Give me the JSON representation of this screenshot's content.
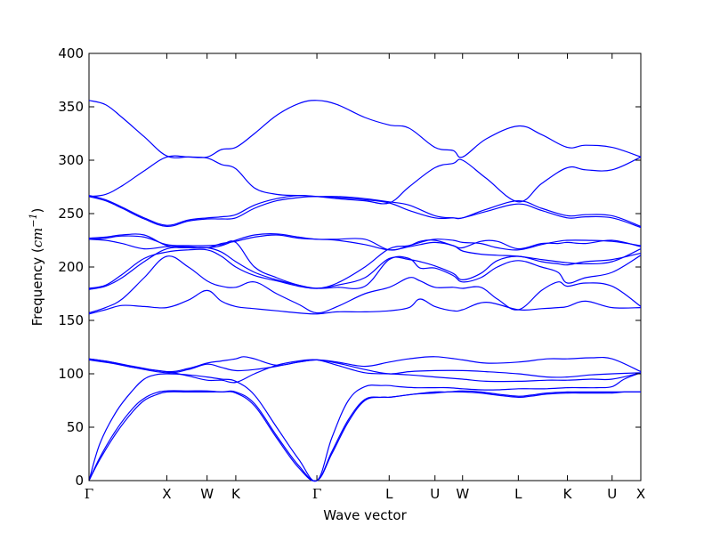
{
  "chart_data": {
    "type": "line",
    "title": "",
    "xlabel": "Wave vector",
    "ylabel": {
      "prefix": "Frequency (",
      "unit_base": "cm",
      "unit_exp": "−1",
      "suffix": ")"
    },
    "ylim": [
      0,
      400
    ],
    "yticks": [
      0,
      50,
      100,
      150,
      200,
      250,
      300,
      350,
      400
    ],
    "xlim": [
      0,
      1
    ],
    "high_symmetry_points": [
      {
        "label": "Γ",
        "x": 0.0
      },
      {
        "label": "X",
        "x": 0.141
      },
      {
        "label": "W",
        "x": 0.214
      },
      {
        "label": "K",
        "x": 0.266
      },
      {
        "label": "Γ",
        "x": 0.413
      },
      {
        "label": "L",
        "x": 0.544
      },
      {
        "label": "U",
        "x": 0.627
      },
      {
        "label": "W",
        "x": 0.677
      },
      {
        "label": "L",
        "x": 0.778
      },
      {
        "label": "K",
        "x": 0.867
      },
      {
        "label": "U",
        "x": 0.948
      },
      {
        "label": "X",
        "x": 1.0
      }
    ],
    "series_color": "#0000ff",
    "series": [
      {
        "x": [
          0,
          0.02,
          0.05,
          0.08,
          0.1,
          0.12,
          0.141,
          0.18,
          0.214,
          0.24,
          0.266,
          0.3,
          0.34,
          0.38,
          0.413,
          0.44,
          0.47,
          0.5,
          0.53,
          0.544,
          0.56,
          0.59,
          0.627,
          0.65,
          0.677,
          0.71,
          0.74,
          0.778,
          0.8,
          0.83,
          0.867,
          0.89,
          0.92,
          0.948,
          0.97,
          1.0
        ],
        "y": [
          0,
          20,
          45,
          65,
          75,
          80,
          83,
          83,
          83,
          83,
          82,
          70,
          40,
          12,
          0,
          25,
          55,
          75,
          78,
          78,
          79,
          81,
          82,
          83,
          83,
          82,
          80,
          78,
          79,
          81,
          82,
          82,
          82,
          82,
          83,
          83
        ]
      },
      {
        "x": [
          0,
          0.02,
          0.05,
          0.08,
          0.1,
          0.12,
          0.141,
          0.18,
          0.214,
          0.24,
          0.266,
          0.3,
          0.34,
          0.38,
          0.413,
          0.44,
          0.47,
          0.5,
          0.53,
          0.544,
          0.56,
          0.59,
          0.627,
          0.65,
          0.677,
          0.71,
          0.74,
          0.778,
          0.8,
          0.83,
          0.867,
          0.89,
          0.92,
          0.948,
          0.97,
          1.0
        ],
        "y": [
          0,
          22,
          48,
          68,
          77,
          82,
          84,
          84,
          84,
          83,
          83,
          72,
          42,
          14,
          0,
          27,
          57,
          76,
          78,
          78,
          79,
          81,
          83,
          83,
          84,
          83,
          81,
          79,
          80,
          82,
          83,
          83,
          83,
          83,
          83,
          83
        ]
      },
      {
        "x": [
          0,
          0.02,
          0.05,
          0.08,
          0.1,
          0.12,
          0.141,
          0.18,
          0.214,
          0.24,
          0.266,
          0.3,
          0.34,
          0.38,
          0.413,
          0.44,
          0.47,
          0.5,
          0.53,
          0.544,
          0.56,
          0.59,
          0.627,
          0.65,
          0.677,
          0.71,
          0.74,
          0.778,
          0.8,
          0.83,
          0.867,
          0.89,
          0.92,
          0.948,
          0.97,
          1.0
        ],
        "y": [
          0,
          35,
          65,
          85,
          95,
          99,
          100,
          99,
          97,
          95,
          93,
          80,
          50,
          20,
          0,
          40,
          75,
          88,
          89,
          89,
          88,
          87,
          87,
          87,
          86,
          85,
          85,
          86,
          86,
          86,
          87,
          87,
          87,
          88,
          95,
          101
        ]
      },
      {
        "x": [
          0,
          0.04,
          0.08,
          0.141,
          0.18,
          0.214,
          0.24,
          0.266,
          0.3,
          0.34,
          0.38,
          0.413,
          0.45,
          0.5,
          0.544,
          0.58,
          0.627,
          0.677,
          0.72,
          0.778,
          0.83,
          0.867,
          0.91,
          0.948,
          1.0
        ],
        "y": [
          114,
          111,
          106,
          102,
          98,
          94,
          94,
          92,
          100,
          108,
          112,
          113,
          108,
          101,
          100,
          99,
          97,
          95,
          93,
          93,
          94,
          94,
          95,
          95,
          101
        ]
      },
      {
        "x": [
          0,
          0.04,
          0.08,
          0.141,
          0.18,
          0.214,
          0.24,
          0.266,
          0.3,
          0.34,
          0.38,
          0.413,
          0.45,
          0.5,
          0.544,
          0.58,
          0.627,
          0.677,
          0.72,
          0.778,
          0.83,
          0.867,
          0.91,
          0.948,
          1.0
        ],
        "y": [
          113,
          110,
          106,
          101,
          104,
          109,
          106,
          103,
          104,
          107,
          111,
          113,
          110,
          104,
          100,
          102,
          103,
          103,
          102,
          100,
          97,
          97,
          99,
          100,
          101
        ]
      },
      {
        "x": [
          0,
          0.04,
          0.08,
          0.141,
          0.18,
          0.214,
          0.24,
          0.266,
          0.28,
          0.3,
          0.34,
          0.38,
          0.413,
          0.45,
          0.5,
          0.544,
          0.58,
          0.627,
          0.677,
          0.72,
          0.778,
          0.83,
          0.867,
          0.91,
          0.948,
          1.0
        ],
        "y": [
          114,
          111,
          107,
          102,
          105,
          110,
          112,
          114,
          116,
          114,
          108,
          111,
          113,
          111,
          107,
          111,
          114,
          116,
          113,
          110,
          111,
          114,
          114,
          115,
          114,
          102
        ]
      },
      {
        "x": [
          0,
          0.03,
          0.06,
          0.1,
          0.141,
          0.18,
          0.214,
          0.24,
          0.266,
          0.3,
          0.34,
          0.38,
          0.413,
          0.45,
          0.5,
          0.544,
          0.58,
          0.6,
          0.627,
          0.66,
          0.677,
          0.72,
          0.778,
          0.82,
          0.85,
          0.867,
          0.9,
          0.948,
          1.0
        ],
        "y": [
          156,
          160,
          164,
          163,
          162,
          169,
          178,
          168,
          163,
          161,
          159,
          157,
          156,
          158,
          158,
          159,
          162,
          170,
          163,
          159,
          160,
          167,
          160,
          161,
          162,
          163,
          168,
          162,
          162
        ]
      },
      {
        "x": [
          0,
          0.03,
          0.06,
          0.1,
          0.141,
          0.18,
          0.214,
          0.24,
          0.266,
          0.3,
          0.34,
          0.38,
          0.413,
          0.45,
          0.5,
          0.544,
          0.58,
          0.6,
          0.627,
          0.66,
          0.677,
          0.71,
          0.74,
          0.778,
          0.82,
          0.85,
          0.867,
          0.9,
          0.948,
          1.0
        ],
        "y": [
          157,
          162,
          170,
          190,
          210,
          200,
          187,
          182,
          181,
          186,
          175,
          165,
          157,
          163,
          175,
          181,
          190,
          187,
          181,
          181,
          180,
          181,
          170,
          160,
          178,
          186,
          182,
          185,
          182,
          163
        ]
      },
      {
        "x": [
          0,
          0.03,
          0.06,
          0.1,
          0.141,
          0.18,
          0.214,
          0.24,
          0.266,
          0.3,
          0.34,
          0.38,
          0.413,
          0.45,
          0.5,
          0.544,
          0.58,
          0.6,
          0.627,
          0.66,
          0.677,
          0.71,
          0.74,
          0.778,
          0.82,
          0.85,
          0.867,
          0.9,
          0.948,
          1.0
        ],
        "y": [
          179,
          182,
          190,
          205,
          217,
          218,
          218,
          214,
          205,
          195,
          188,
          183,
          180,
          181,
          182,
          207,
          208,
          199,
          199,
          192,
          186,
          190,
          200,
          206,
          200,
          195,
          185,
          190,
          195,
          211
        ]
      },
      {
        "x": [
          0,
          0.03,
          0.06,
          0.1,
          0.141,
          0.18,
          0.214,
          0.24,
          0.266,
          0.3,
          0.34,
          0.38,
          0.413,
          0.45,
          0.5,
          0.544,
          0.58,
          0.6,
          0.627,
          0.66,
          0.677,
          0.71,
          0.74,
          0.778,
          0.82,
          0.85,
          0.867,
          0.9,
          0.948,
          1.0
        ],
        "y": [
          180,
          183,
          193,
          208,
          214,
          216,
          216,
          210,
          200,
          192,
          187,
          182,
          180,
          183,
          190,
          208,
          207,
          205,
          201,
          194,
          188,
          194,
          206,
          210,
          205,
          203,
          202,
          205,
          207,
          213
        ]
      },
      {
        "x": [
          0,
          0.03,
          0.06,
          0.1,
          0.141,
          0.18,
          0.214,
          0.24,
          0.266,
          0.3,
          0.34,
          0.38,
          0.413,
          0.45,
          0.5,
          0.544,
          0.58,
          0.6,
          0.627,
          0.66,
          0.677,
          0.71,
          0.74,
          0.778,
          0.82,
          0.85,
          0.867,
          0.9,
          0.948,
          1.0
        ],
        "y": [
          226,
          225,
          222,
          217,
          219,
          219,
          218,
          222,
          224,
          228,
          230,
          227,
          226,
          225,
          221,
          216,
          219,
          221,
          223,
          220,
          215,
          212,
          211,
          210,
          207,
          205,
          204,
          203,
          205,
          217
        ]
      },
      {
        "x": [
          0,
          0.03,
          0.06,
          0.1,
          0.141,
          0.18,
          0.214,
          0.24,
          0.266,
          0.3,
          0.34,
          0.38,
          0.413,
          0.45,
          0.5,
          0.544,
          0.58,
          0.6,
          0.627,
          0.66,
          0.677,
          0.71,
          0.74,
          0.778,
          0.82,
          0.85,
          0.867,
          0.9,
          0.948,
          1.0
        ],
        "y": [
          227,
          228,
          230,
          230,
          220,
          218,
          218,
          220,
          225,
          230,
          231,
          228,
          226,
          226,
          226,
          216,
          220,
          223,
          226,
          225,
          223,
          222,
          218,
          216,
          221,
          224,
          225,
          225,
          224,
          220
        ]
      },
      {
        "x": [
          0,
          0.03,
          0.06,
          0.1,
          0.141,
          0.18,
          0.214,
          0.24,
          0.266,
          0.3,
          0.34,
          0.38,
          0.413,
          0.45,
          0.5,
          0.544,
          0.58,
          0.6,
          0.627,
          0.66,
          0.677,
          0.71,
          0.74,
          0.778,
          0.82,
          0.85,
          0.867,
          0.9,
          0.948,
          1.0
        ],
        "y": [
          226,
          227,
          229,
          228,
          221,
          220,
          220,
          221,
          223,
          200,
          190,
          183,
          180,
          185,
          200,
          217,
          220,
          224,
          225,
          220,
          218,
          224,
          224,
          217,
          222,
          222,
          223,
          222,
          225,
          219
        ]
      },
      {
        "x": [
          0,
          0.03,
          0.06,
          0.1,
          0.141,
          0.18,
          0.214,
          0.24,
          0.266,
          0.3,
          0.34,
          0.38,
          0.413,
          0.45,
          0.5,
          0.544,
          0.58,
          0.627,
          0.66,
          0.677,
          0.72,
          0.778,
          0.82,
          0.867,
          0.9,
          0.948,
          1.0
        ],
        "y": [
          266,
          262,
          255,
          245,
          238,
          243,
          245,
          245,
          246,
          255,
          262,
          265,
          266,
          265,
          263,
          260,
          253,
          246,
          246,
          246,
          252,
          259,
          253,
          246,
          247,
          246,
          237
        ]
      },
      {
        "x": [
          0,
          0.03,
          0.06,
          0.1,
          0.141,
          0.18,
          0.214,
          0.24,
          0.266,
          0.3,
          0.34,
          0.38,
          0.413,
          0.45,
          0.5,
          0.544,
          0.58,
          0.627,
          0.66,
          0.677,
          0.72,
          0.778,
          0.82,
          0.867,
          0.9,
          0.948,
          1.0
        ],
        "y": [
          267,
          263,
          256,
          246,
          239,
          244,
          246,
          247,
          249,
          258,
          264,
          267,
          266,
          266,
          264,
          261,
          258,
          248,
          246,
          246,
          254,
          262,
          255,
          248,
          249,
          248,
          238
        ]
      },
      {
        "x": [
          0,
          0.03,
          0.06,
          0.1,
          0.141,
          0.18,
          0.214,
          0.24,
          0.266,
          0.3,
          0.34,
          0.38,
          0.413,
          0.45,
          0.5,
          0.544,
          0.58,
          0.627,
          0.66,
          0.677,
          0.72,
          0.778,
          0.82,
          0.867,
          0.9,
          0.948,
          1.0
        ],
        "y": [
          266,
          268,
          276,
          290,
          303,
          303,
          302,
          296,
          292,
          274,
          268,
          267,
          266,
          264,
          262,
          260,
          275,
          293,
          297,
          300,
          283,
          261,
          278,
          293,
          291,
          291,
          303
        ]
      },
      {
        "x": [
          0,
          0.03,
          0.06,
          0.1,
          0.141,
          0.18,
          0.214,
          0.24,
          0.266,
          0.3,
          0.34,
          0.38,
          0.413,
          0.45,
          0.5,
          0.544,
          0.58,
          0.627,
          0.66,
          0.677,
          0.72,
          0.778,
          0.82,
          0.867,
          0.9,
          0.948,
          1.0
        ],
        "y": [
          356,
          352,
          340,
          322,
          304,
          303,
          303,
          310,
          312,
          325,
          342,
          353,
          356,
          352,
          340,
          333,
          330,
          312,
          309,
          303,
          320,
          332,
          324,
          312,
          314,
          312,
          303
        ]
      }
    ]
  }
}
